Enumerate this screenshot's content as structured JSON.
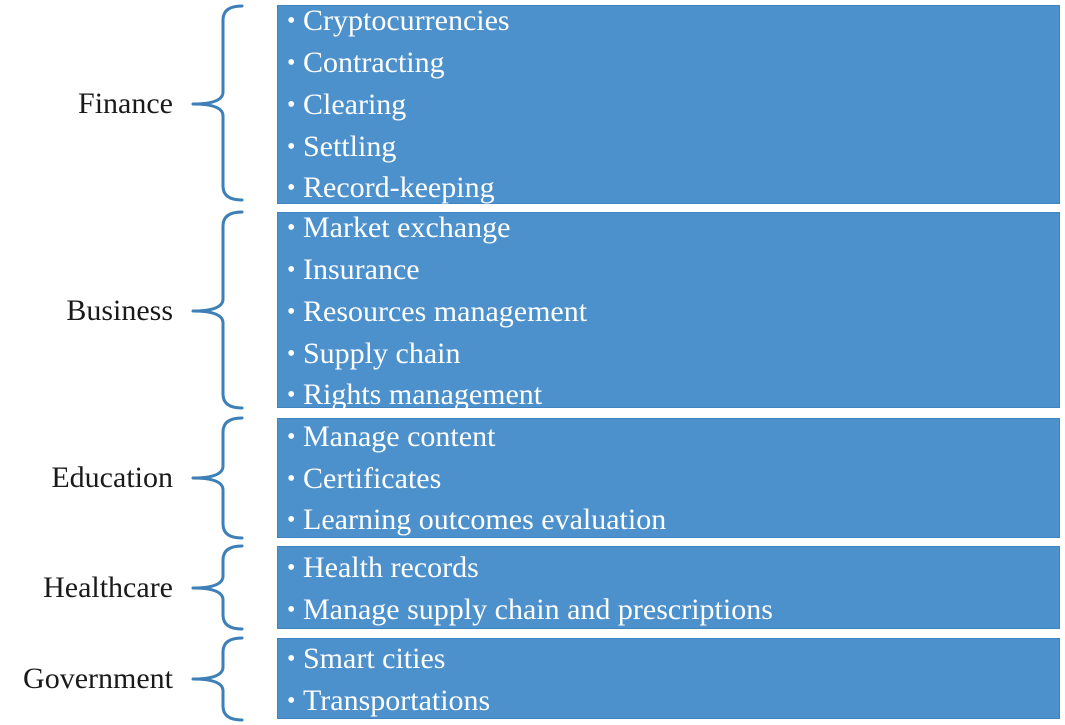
{
  "colors": {
    "box_fill": "#4d91cc",
    "brace_stroke": "#3e7fb8",
    "label_text": "#1a1a1a",
    "item_text": "#ffffff"
  },
  "bullet_glyph": "•",
  "sections": [
    {
      "label": "Finance",
      "items": [
        "Cryptocurrencies",
        "Contracting",
        "Clearing",
        "Settling",
        "Record-keeping"
      ]
    },
    {
      "label": "Business",
      "items": [
        "Market exchange",
        "Insurance",
        "Resources management",
        "Supply chain",
        "Rights management"
      ]
    },
    {
      "label": "Education",
      "items": [
        "Manage content",
        "Certificates",
        "Learning outcomes evaluation"
      ]
    },
    {
      "label": "Healthcare",
      "items": [
        "Health records",
        "Manage supply chain and prescriptions"
      ]
    },
    {
      "label": "Government",
      "items": [
        "Smart cities",
        "Transportations"
      ]
    }
  ]
}
